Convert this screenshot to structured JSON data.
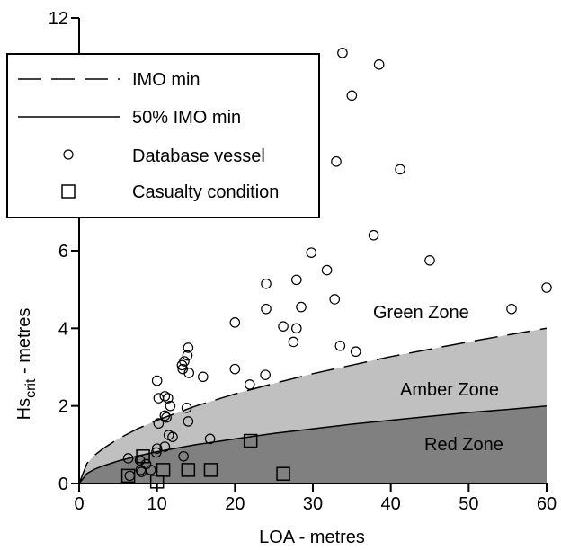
{
  "chart_data": {
    "type": "scatter",
    "xlabel": "LOA - metres",
    "ylabel_main": "Hs",
    "ylabel_sub": "crit",
    "ylabel_rest": " - metres",
    "xlim": [
      0,
      60
    ],
    "ylim": [
      0,
      12
    ],
    "x_ticks": [
      0,
      10,
      20,
      30,
      40,
      50,
      60
    ],
    "y_ticks": [
      0,
      2,
      4,
      6,
      8,
      10,
      12
    ],
    "x_tick_labels": [
      "0",
      "10",
      "20",
      "30",
      "40",
      "50",
      "60"
    ],
    "y_tick_labels": [
      "0",
      "2",
      "4",
      "6",
      "8",
      "10",
      "12"
    ],
    "grid": false,
    "legend_position": "upper-left",
    "zones": {
      "green": "Green Zone",
      "amber": "Amber Zone",
      "red": "Red Zone"
    },
    "colors": {
      "amber_fill": "#c0c0c0",
      "red_fill": "#808080",
      "background": "#ffffff"
    },
    "series": [
      {
        "name": "IMO min",
        "kind": "dashed-line",
        "x": [
          0,
          1,
          2,
          3,
          5,
          7.5,
          10,
          15,
          20,
          25,
          30,
          35,
          40,
          45,
          50,
          55,
          60
        ],
        "y": [
          0,
          0.52,
          0.73,
          0.89,
          1.15,
          1.41,
          1.63,
          2.0,
          2.31,
          2.58,
          2.83,
          3.05,
          3.27,
          3.46,
          3.65,
          3.83,
          4.0
        ]
      },
      {
        "name": "50% IMO min",
        "kind": "solid-line",
        "x": [
          0,
          1,
          2,
          3,
          5,
          7.5,
          10,
          15,
          20,
          25,
          30,
          35,
          40,
          45,
          50,
          55,
          60
        ],
        "y": [
          0,
          0.26,
          0.37,
          0.45,
          0.58,
          0.71,
          0.82,
          1.0,
          1.15,
          1.29,
          1.41,
          1.53,
          1.63,
          1.73,
          1.83,
          1.91,
          2.0
        ]
      },
      {
        "name": "Database vessel",
        "kind": "circle-markers",
        "points": [
          [
            33.8,
            11.1
          ],
          [
            38.5,
            10.8
          ],
          [
            35.0,
            10.0
          ],
          [
            33.0,
            8.3
          ],
          [
            41.2,
            8.1
          ],
          [
            37.8,
            6.4
          ],
          [
            29.8,
            5.95
          ],
          [
            45.0,
            5.75
          ],
          [
            31.8,
            5.5
          ],
          [
            27.9,
            5.25
          ],
          [
            24.0,
            5.15
          ],
          [
            60.0,
            5.05
          ],
          [
            32.8,
            4.75
          ],
          [
            28.5,
            4.55
          ],
          [
            24.0,
            4.5
          ],
          [
            55.5,
            4.5
          ],
          [
            20.0,
            4.15
          ],
          [
            26.2,
            4.05
          ],
          [
            27.9,
            4.0
          ],
          [
            27.5,
            3.65
          ],
          [
            33.5,
            3.55
          ],
          [
            35.5,
            3.4
          ],
          [
            14.0,
            3.5
          ],
          [
            13.9,
            3.3
          ],
          [
            13.5,
            3.15
          ],
          [
            13.2,
            3.05
          ],
          [
            13.3,
            2.95
          ],
          [
            20.0,
            2.95
          ],
          [
            14.1,
            2.85
          ],
          [
            23.9,
            2.8
          ],
          [
            15.9,
            2.75
          ],
          [
            10.0,
            2.65
          ],
          [
            21.9,
            2.55
          ],
          [
            11.0,
            2.25
          ],
          [
            10.2,
            2.2
          ],
          [
            11.4,
            2.2
          ],
          [
            13.8,
            1.95
          ],
          [
            11.7,
            2.0
          ],
          [
            11.0,
            1.75
          ],
          [
            11.2,
            1.7
          ],
          [
            14.0,
            1.6
          ],
          [
            10.2,
            1.55
          ],
          [
            11.5,
            1.25
          ],
          [
            12.0,
            1.2
          ],
          [
            16.8,
            1.15
          ],
          [
            11.0,
            0.95
          ],
          [
            10.0,
            0.9
          ],
          [
            9.9,
            0.8
          ],
          [
            13.4,
            0.7
          ],
          [
            6.3,
            0.65
          ],
          [
            7.8,
            0.6
          ],
          [
            8.6,
            0.5
          ],
          [
            7.9,
            0.35
          ],
          [
            6.5,
            0.2
          ],
          [
            9.2,
            0.35
          ],
          [
            8.0,
            0.3
          ]
        ]
      },
      {
        "name": "Casualty condition",
        "kind": "square-markers",
        "points": [
          [
            8.2,
            0.7
          ],
          [
            6.3,
            0.2
          ],
          [
            10.8,
            0.35
          ],
          [
            14.0,
            0.35
          ],
          [
            16.9,
            0.35
          ],
          [
            22.0,
            1.1
          ],
          [
            26.2,
            0.25
          ],
          [
            10.0,
            0.05
          ]
        ]
      }
    ]
  }
}
